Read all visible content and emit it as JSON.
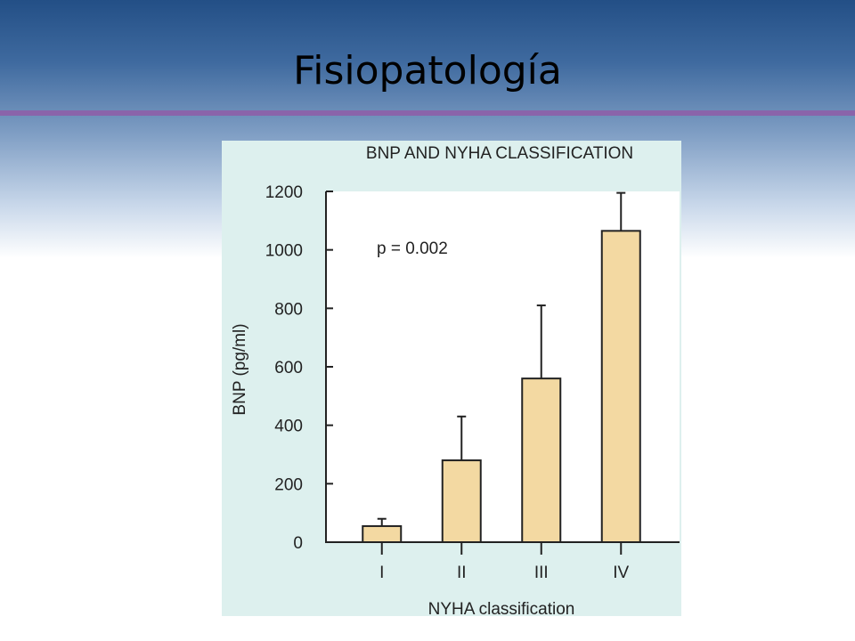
{
  "slide": {
    "title": "Fisiopatología"
  },
  "colors": {
    "panel_background": "#ddf0ee",
    "plot_background": "#ffffff",
    "bar_fill": "#f3d9a2",
    "title_rule": "#8a64aa"
  },
  "chart_data": {
    "type": "bar",
    "title": "BNP AND NYHA CLASSIFICATION",
    "xlabel": "NYHA classification",
    "ylabel": "BNP (pg/ml)",
    "categories": [
      "I",
      "II",
      "III",
      "IV"
    ],
    "values": [
      55,
      280,
      560,
      1065
    ],
    "error_upper": [
      80,
      430,
      810,
      1195
    ],
    "ylim": [
      0,
      1200
    ],
    "yticks": [
      0,
      200,
      400,
      600,
      800,
      1000,
      1200
    ],
    "annotation": "p = 0.002",
    "grid": false,
    "legend": "none"
  }
}
